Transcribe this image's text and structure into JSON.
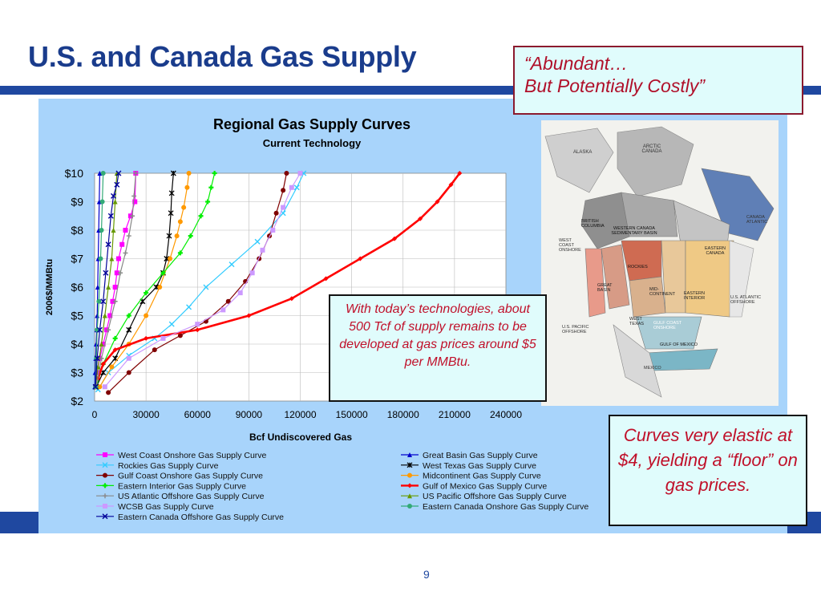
{
  "slide": {
    "title": "U.S. and Canada Gas Supply",
    "page_number": "9"
  },
  "callouts": {
    "abundant_line1": "“Abundant…",
    "abundant_line2": "But Potentially Costly”",
    "developed_text": "With today’s technologies, about 500 Tcf of supply remains to be developed at gas prices around $5 per MMBtu.",
    "elastic_text": "Curves very elastic at $4, yielding a “floor” on gas prices."
  },
  "colors": {
    "title": "#1a3c8c",
    "band": "#1f48a0",
    "panel": "#a8d4fb",
    "callout_fill": "#e0fcfc",
    "callout_text": "#c0102a"
  },
  "map": {
    "labels": [
      "ALASKA",
      "ARCTIC CANADA",
      "BRITISH COLUMBIA",
      "WESTERN CANADA SEDIMENTARY BASIN",
      "CANADA ATLANTIC",
      "WEST COAST ONSHORE",
      "ROCKIES",
      "EASTERN CANADA",
      "GREAT BASIN",
      "MID-CONTINENT",
      "EASTERN INTERIOR",
      "U.S. ATLANTIC OFFSHORE",
      "WEST TEXAS",
      "GULF COAST ONSHORE",
      "U.S. PACIFIC OFFSHORE",
      "GULF OF MEXICO",
      "MEXICO"
    ]
  },
  "chart_data": {
    "type": "line",
    "title": "Regional Gas Supply Curves",
    "subtitle": "Current Technology",
    "xlabel": "Bcf Undiscovered Gas",
    "ylabel": "2006$/MMBtu",
    "xlim": [
      0,
      240000
    ],
    "ylim": [
      2,
      10
    ],
    "x_ticks": [
      "0",
      "30000",
      "60000",
      "90000",
      "120000",
      "150000",
      "180000",
      "210000",
      "240000"
    ],
    "y_ticks": [
      "$2",
      "$3",
      "$4",
      "$5",
      "$6",
      "$7",
      "$8",
      "$9",
      "$10"
    ],
    "grid": true,
    "legend_position": "bottom",
    "series": [
      {
        "name": "West Coast Onshore Gas Supply Curve",
        "color": "#ff00ff",
        "marker": "square",
        "x": [
          500,
          1500,
          3000,
          5000,
          7000,
          9000,
          10500,
          12000,
          13000,
          14000,
          16000,
          18000,
          21000,
          23500,
          24000
        ],
        "y": [
          2.5,
          3.0,
          3.5,
          4.0,
          4.5,
          5.0,
          5.5,
          6.0,
          6.5,
          7.0,
          7.5,
          8.0,
          8.5,
          9.0,
          10.0
        ]
      },
      {
        "name": "Great Basin Gas Supply Curve",
        "color": "#0000cc",
        "marker": "triangle",
        "x": [
          100,
          300,
          600,
          900,
          1200,
          1500,
          1800,
          2100,
          2400,
          2700,
          3000
        ],
        "y": [
          2.5,
          3.0,
          3.5,
          4.0,
          4.5,
          5.0,
          6.0,
          7.0,
          8.0,
          9.0,
          10.0
        ]
      },
      {
        "name": "Rockies Gas Supply Curve",
        "color": "#33ccff",
        "marker": "x",
        "x": [
          2000,
          8000,
          20000,
          35000,
          45000,
          55000,
          65000,
          80000,
          95000,
          110000,
          118000,
          122000
        ],
        "y": [
          2.4,
          3.0,
          3.6,
          4.2,
          4.7,
          5.3,
          6.0,
          6.8,
          7.6,
          8.6,
          9.5,
          10.0
        ]
      },
      {
        "name": "West Texas Gas Supply Curve",
        "color": "#000000",
        "marker": "star",
        "x": [
          1000,
          5000,
          12000,
          20000,
          28000,
          36000,
          40000,
          42000,
          43500,
          44500,
          45000,
          46000
        ],
        "y": [
          2.5,
          3.0,
          3.5,
          4.5,
          5.5,
          6.0,
          6.5,
          7.0,
          7.8,
          8.6,
          9.3,
          10.0
        ]
      },
      {
        "name": "Gulf Coast Onshore Gas Supply Curve",
        "color": "#800000",
        "marker": "circle",
        "x": [
          8000,
          20000,
          35000,
          50000,
          65000,
          78000,
          88000,
          96000,
          102000,
          106000,
          110000,
          112000
        ],
        "y": [
          2.3,
          3.0,
          3.8,
          4.3,
          4.8,
          5.5,
          6.2,
          7.0,
          7.8,
          8.6,
          9.4,
          10.0
        ]
      },
      {
        "name": "Midcontinent Gas Supply Curve",
        "color": "#ff9900",
        "marker": "circle",
        "x": [
          3000,
          10000,
          20000,
          30000,
          38000,
          44000,
          48000,
          50000,
          52000,
          54000,
          55000
        ],
        "y": [
          2.5,
          3.2,
          4.0,
          5.0,
          6.0,
          7.0,
          7.8,
          8.3,
          8.8,
          9.5,
          10.0
        ]
      },
      {
        "name": "Eastern Interior Gas Supply Curve",
        "color": "#00ee00",
        "marker": "cross",
        "x": [
          1000,
          5000,
          12000,
          20000,
          30000,
          40000,
          50000,
          56000,
          62000,
          66000,
          68000,
          70000
        ],
        "y": [
          2.5,
          3.3,
          4.2,
          5.0,
          5.8,
          6.5,
          7.2,
          7.8,
          8.5,
          9.0,
          9.5,
          10.0
        ]
      },
      {
        "name": "Gulf of Mexico Gas Supply Curve",
        "color": "#ff0000",
        "marker": "diamond",
        "x": [
          2000,
          5000,
          12000,
          30000,
          60000,
          90000,
          115000,
          135000,
          155000,
          175000,
          190000,
          200000,
          208000,
          213000
        ],
        "y": [
          2.8,
          3.3,
          3.8,
          4.2,
          4.5,
          5.0,
          5.6,
          6.3,
          7.0,
          7.7,
          8.4,
          9.0,
          9.6,
          10.0
        ]
      },
      {
        "name": "US Atlantic Offshore Gas Supply Curve",
        "color": "#888888",
        "marker": "plus",
        "x": [
          1000,
          4000,
          8000,
          12000,
          15000,
          18000,
          20000,
          22000,
          23000,
          24000
        ],
        "y": [
          2.5,
          3.5,
          4.5,
          5.5,
          6.5,
          7.2,
          7.8,
          8.5,
          9.2,
          10.0
        ]
      },
      {
        "name": "US Pacific Offshore Gas Supply Curve",
        "color": "#669900",
        "marker": "triangle",
        "x": [
          500,
          2000,
          4000,
          6000,
          8000,
          10000,
          11000,
          12000,
          13000
        ],
        "y": [
          2.5,
          3.2,
          4.0,
          5.0,
          6.0,
          7.0,
          8.0,
          9.0,
          10.0
        ]
      },
      {
        "name": "WCSB Gas Supply Curve",
        "color": "#cc99ff",
        "marker": "square",
        "x": [
          6000,
          20000,
          40000,
          60000,
          75000,
          85000,
          92000,
          98000,
          104000,
          110000,
          115000,
          120000
        ],
        "y": [
          2.5,
          3.5,
          4.2,
          4.7,
          5.2,
          5.8,
          6.5,
          7.3,
          8.0,
          8.8,
          9.5,
          10.0
        ]
      },
      {
        "name": "Eastern Canada Onshore Gas Supply Curve",
        "color": "#33aa77",
        "marker": "circle",
        "x": [
          500,
          1000,
          1500,
          2500,
          3500,
          4000,
          4500,
          5000
        ],
        "y": [
          2.5,
          3.5,
          4.5,
          5.5,
          7.0,
          8.0,
          9.0,
          10.0
        ]
      },
      {
        "name": "Eastern Canada Offshore Gas Supply Curve",
        "color": "#000099",
        "marker": "x",
        "x": [
          500,
          1500,
          3000,
          5000,
          6500,
          8000,
          9500,
          11000,
          13000,
          14000
        ],
        "y": [
          2.5,
          3.5,
          4.5,
          5.5,
          6.5,
          7.5,
          8.5,
          9.2,
          9.6,
          10.0
        ]
      }
    ]
  }
}
